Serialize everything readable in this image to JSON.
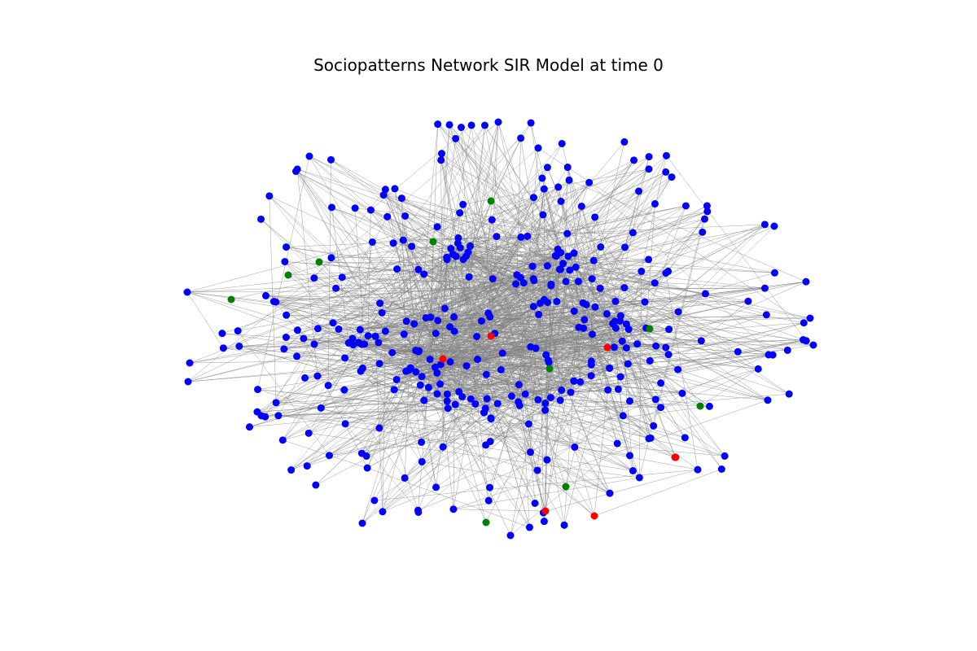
{
  "title": "Sociopatterns Network SIR Model at time 0",
  "state_colors": {
    "susceptible": "#0000ff",
    "infected": "#ff0000",
    "recovered": "#008000",
    "edge": "#808080",
    "background": "#ffffff"
  },
  "chart_data": {
    "type": "network",
    "title": "Sociopatterns Network SIR Model at time 0",
    "time": 0,
    "model": "SIR",
    "grid": false,
    "axes": "hidden",
    "node_counts_visible": {
      "infected": 7,
      "recovered": 10
    }
  }
}
